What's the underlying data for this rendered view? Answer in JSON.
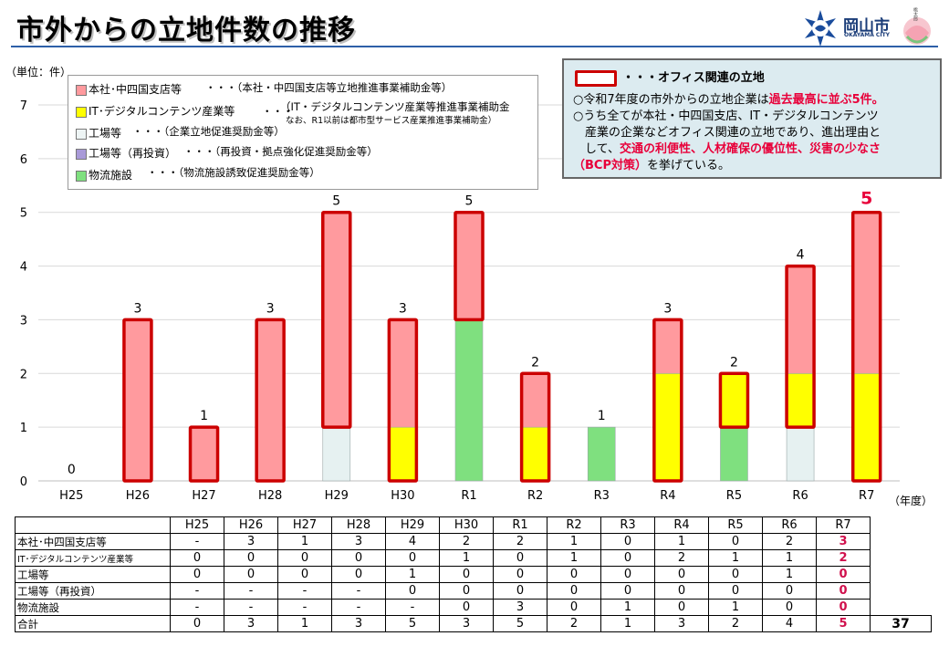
{
  "header": {
    "title": "市外からの立地件数の推移"
  },
  "brand": {
    "city": "岡山市",
    "city_en": "OKAYAMA CITY",
    "mascot": "桃太郎"
  },
  "chart_data": {
    "type": "bar",
    "stacked": true,
    "unit_label": "（単位：件）",
    "xlabel": "（年度）",
    "ylim": [
      0,
      7
    ],
    "yticks": [
      "0",
      "1",
      "2",
      "3",
      "4",
      "5",
      "6",
      "7"
    ],
    "categories": [
      "H25",
      "H26",
      "H27",
      "H28",
      "H29",
      "H30",
      "R1",
      "R2",
      "R3",
      "R4",
      "R5",
      "R6",
      "R7"
    ],
    "series": [
      {
        "name": "物流施設",
        "color": "#7fe07f",
        "values": [
          0,
          0,
          0,
          0,
          0,
          0,
          3,
          0,
          1,
          0,
          1,
          0,
          0
        ]
      },
      {
        "name": "工場等",
        "color": "#e6f1f1",
        "values": [
          0,
          0,
          0,
          0,
          1,
          0,
          0,
          0,
          0,
          0,
          0,
          1,
          0
        ]
      },
      {
        "name": "工場等（再投資）",
        "color": "#a99ad8",
        "values": [
          0,
          0,
          0,
          0,
          0,
          0,
          0,
          0,
          0,
          0,
          0,
          0,
          0
        ]
      },
      {
        "name": "IT・デジタルコンテンツ産業等",
        "color": "#ffff00",
        "values": [
          0,
          0,
          0,
          0,
          0,
          1,
          0,
          1,
          0,
          2,
          1,
          1,
          2
        ]
      },
      {
        "name": "本社・中四国支店等",
        "color": "#ff9a9e",
        "values": [
          0,
          3,
          1,
          3,
          4,
          2,
          2,
          1,
          0,
          1,
          0,
          2,
          3
        ]
      }
    ],
    "totals": [
      0,
      3,
      1,
      3,
      5,
      3,
      5,
      2,
      1,
      3,
      2,
      4,
      5
    ],
    "total_labels": [
      "0",
      "3",
      "1",
      "3",
      "5",
      "3",
      "5",
      "2",
      "1",
      "3",
      "2",
      "4",
      "5"
    ],
    "office_outline": [
      {
        "from": 0,
        "to": 0
      },
      {
        "from": 0,
        "to": 3
      },
      {
        "from": 0,
        "to": 1
      },
      {
        "from": 0,
        "to": 3
      },
      {
        "from": 1,
        "to": 5
      },
      {
        "from": 0,
        "to": 3
      },
      {
        "from": 3,
        "to": 5
      },
      {
        "from": 0,
        "to": 2
      },
      {
        "from": 0,
        "to": 0
      },
      {
        "from": 0,
        "to": 3
      },
      {
        "from": 1,
        "to": 2
      },
      {
        "from": 1,
        "to": 4
      },
      {
        "from": 0,
        "to": 5
      }
    ],
    "highlight_total_index": 12,
    "colors": {
      "outline": "#cc0000",
      "highlight_label": "#e8003a",
      "grid": "#d9d9d9"
    }
  },
  "legend": {
    "items": [
      {
        "label": "本社･中四国支店等",
        "note": "・・・（本社・中四国支店等立地推進事業補助金等）",
        "color": "#ff9a9e"
      },
      {
        "label": "IT･デジタルコンテンツ産業等",
        "note": "・・・",
        "color": "#ffff00"
      },
      {
        "label": "工場等",
        "note": "・・・（企業立地促進奨励金等）",
        "color": "#eef5f5"
      },
      {
        "label": "工場等（再投資）",
        "note": "・・・（再投資・拠点強化促進奨励金等）",
        "color": "#a99ad8"
      },
      {
        "label": "物流施設",
        "note": "・・・（物流施設誘致促進奨励金等）",
        "color": "#7fe07f"
      }
    ],
    "it_note_1": "（IT・デジタルコンテンツ産業等推進事業補助金",
    "it_note_2": "なお、R1以前は都市型サービス産業推進事業補助金）"
  },
  "callout": {
    "head": "・・・オフィス関連の立地",
    "l1a": "○令和7年度の市外からの立地企業は",
    "l1b": "過去最高に並ぶ5件。",
    "l2": "○うち全てが本社・中四国支店、IT・デジタルコンテンツ",
    "l3": "　産業の企業などオフィス関連の立地であり、進出理由と",
    "l4a": "　して、",
    "l4b": "交通の利便性、人材確保の優位性、災害の少なさ",
    "l5a": "（BCP対策）",
    "l5b": "を挙げている。"
  },
  "table": {
    "years": [
      "H25",
      "H26",
      "H27",
      "H28",
      "H29",
      "H30",
      "R1",
      "R2",
      "R3",
      "R4",
      "R5",
      "R6",
      "R7"
    ],
    "rows": [
      {
        "label": "本社･中四国支店等",
        "values": [
          "-",
          "3",
          "1",
          "3",
          "4",
          "2",
          "2",
          "1",
          "0",
          "1",
          "0",
          "2",
          "3"
        ]
      },
      {
        "label": "IT･デジタルコンテンツ産業等",
        "values": [
          "0",
          "0",
          "0",
          "0",
          "0",
          "1",
          "0",
          "1",
          "0",
          "2",
          "1",
          "1",
          "2"
        ]
      },
      {
        "label": "工場等",
        "values": [
          "0",
          "0",
          "0",
          "0",
          "1",
          "0",
          "0",
          "0",
          "0",
          "0",
          "0",
          "1",
          "0"
        ]
      },
      {
        "label": "工場等（再投資）",
        "values": [
          "-",
          "-",
          "-",
          "-",
          "0",
          "0",
          "0",
          "0",
          "0",
          "0",
          "0",
          "0",
          "0"
        ]
      },
      {
        "label": "物流施設",
        "values": [
          "-",
          "-",
          "-",
          "-",
          "-",
          "0",
          "3",
          "0",
          "1",
          "0",
          "1",
          "0",
          "0"
        ]
      },
      {
        "label": "合計",
        "values": [
          "0",
          "3",
          "1",
          "3",
          "5",
          "3",
          "5",
          "2",
          "1",
          "3",
          "2",
          "4",
          "5"
        ]
      }
    ],
    "grand_total": "37"
  }
}
